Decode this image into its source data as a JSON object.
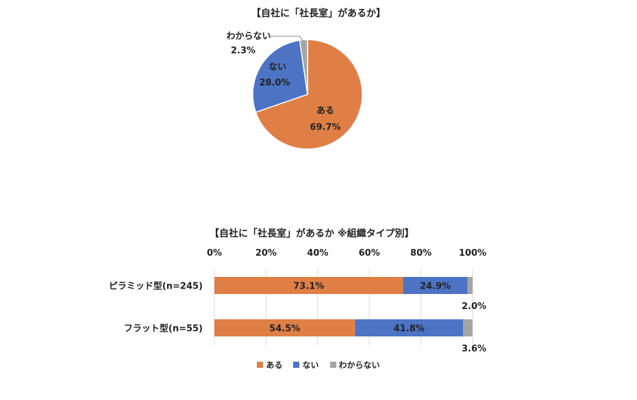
{
  "colors": {
    "aru": "#E07F45",
    "nai": "#4C73C4",
    "wakaranai": "#A5A5A5"
  },
  "chart_data": [
    {
      "type": "pie",
      "title": "【自社に「社長室」があるか】",
      "slices": [
        {
          "name": "ある",
          "value": 69.7,
          "label": "69.7%"
        },
        {
          "name": "ない",
          "value": 28.0,
          "label": "28.0%"
        },
        {
          "name": "わからない",
          "value": 2.3,
          "label": "2.3%"
        }
      ]
    },
    {
      "type": "bar",
      "orientation": "horizontal",
      "stacked": true,
      "title": "【自社に「社長室」があるか ※組織タイプ別】",
      "categories": [
        "ピラミッド型(n=245)",
        "フラット型(n=55)"
      ],
      "series": [
        {
          "name": "ある",
          "values": [
            73.1,
            54.5
          ],
          "labels": [
            "73.1%",
            "54.5%"
          ]
        },
        {
          "name": "ない",
          "values": [
            24.9,
            41.8
          ],
          "labels": [
            "24.9%",
            "41.8%"
          ]
        },
        {
          "name": "わからない",
          "values": [
            2.0,
            3.6
          ],
          "labels": [
            "2.0%",
            "3.6%"
          ]
        }
      ],
      "xlim": [
        0,
        100
      ],
      "xticks": [
        "0%",
        "20%",
        "40%",
        "60%",
        "80%",
        "100%"
      ],
      "grid": true,
      "legend": "bottom"
    }
  ]
}
